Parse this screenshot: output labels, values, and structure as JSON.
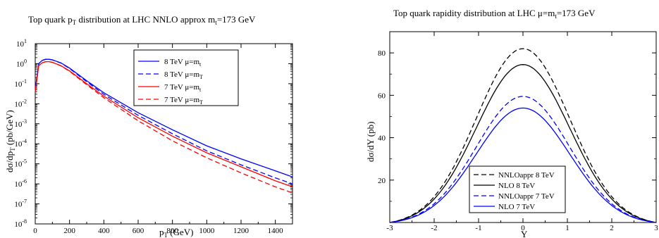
{
  "chart_data": [
    {
      "type": "line",
      "title_main": "Top quark p",
      "title_sub": "T",
      "title_rest": " distribution at  LHC  NNLO approx  m",
      "title_sub2": "t",
      "title_end": "=173 GeV",
      "xlabel_main": "p",
      "xlabel_sub": "T",
      "xlabel_rest": " (GeV)",
      "ylabel_main": "dσ/dp",
      "ylabel_sub": "T",
      "ylabel_rest": " (pb/GeV)",
      "xlim": [
        0,
        1500
      ],
      "ylim_log10": [
        -8,
        1
      ],
      "y_scale": "log",
      "grid": false,
      "legend_position": "top-right",
      "x_ticks": [
        "0",
        "200",
        "400",
        "600",
        "800",
        "1000",
        "1200",
        "1400"
      ],
      "y_ticks": [
        {
          "base": "10",
          "exp": "1"
        },
        {
          "base": "10",
          "exp": "0"
        },
        {
          "base": "10",
          "exp": "-1"
        },
        {
          "base": "10",
          "exp": "-2"
        },
        {
          "base": "10",
          "exp": "-3"
        },
        {
          "base": "10",
          "exp": "-4"
        },
        {
          "base": "10",
          "exp": "-5"
        },
        {
          "base": "10",
          "exp": "-6"
        },
        {
          "base": "10",
          "exp": "-7"
        },
        {
          "base": "10",
          "exp": "-8"
        }
      ],
      "series": [
        {
          "name": "8 TeV μ=m",
          "name_sub": "t",
          "color": "#0000ff",
          "dash": "solid",
          "x": [
            0,
            20,
            40,
            60,
            80,
            100,
            150,
            200,
            300,
            400,
            600,
            800,
            1000,
            1200,
            1400,
            1500
          ],
          "y_log10": [
            -1.3,
            0.0,
            0.16,
            0.22,
            0.22,
            0.19,
            0.04,
            -0.22,
            -0.85,
            -1.45,
            -2.45,
            -3.3,
            -4.1,
            -4.75,
            -5.35,
            -5.65
          ]
        },
        {
          "name": "8 TeV μ=m",
          "name_sub": "T",
          "color": "#0000ff",
          "dash": "dashed",
          "x": [
            0,
            20,
            40,
            60,
            80,
            100,
            150,
            200,
            300,
            400,
            600,
            800,
            1000,
            1200,
            1400,
            1500
          ],
          "y_log10": [
            -1.3,
            0.0,
            0.16,
            0.22,
            0.22,
            0.19,
            0.03,
            -0.24,
            -0.9,
            -1.53,
            -2.58,
            -3.5,
            -4.35,
            -5.05,
            -5.7,
            -6.0
          ]
        },
        {
          "name": "7 TeV μ=m",
          "name_sub": "t",
          "color": "#ff0000",
          "dash": "solid",
          "x": [
            0,
            20,
            40,
            60,
            80,
            100,
            150,
            200,
            300,
            400,
            600,
            800,
            1000,
            1200,
            1400,
            1500
          ],
          "y_log10": [
            -1.4,
            -0.1,
            0.04,
            0.1,
            0.1,
            0.07,
            -0.1,
            -0.36,
            -1.0,
            -1.62,
            -2.7,
            -3.62,
            -4.45,
            -5.15,
            -5.85,
            -6.15
          ]
        },
        {
          "name": "7 TeV μ=m",
          "name_sub": "T",
          "color": "#ff0000",
          "dash": "dashed",
          "x": [
            0,
            20,
            40,
            60,
            80,
            100,
            150,
            200,
            300,
            400,
            600,
            800,
            1000,
            1200,
            1400,
            1500
          ],
          "y_log10": [
            -1.4,
            -0.1,
            0.04,
            0.1,
            0.1,
            0.07,
            -0.11,
            -0.38,
            -1.05,
            -1.7,
            -2.85,
            -3.85,
            -4.7,
            -5.45,
            -6.15,
            -6.45
          ]
        }
      ]
    },
    {
      "type": "line",
      "title_main": "Top quark rapidity distribution at  LHC     μ=m",
      "title_sub": "t",
      "title_end": "=173 GeV",
      "xlabel": "Y",
      "ylabel": "dσ/dY (pb)",
      "xlim": [
        -3,
        3
      ],
      "ylim": [
        0,
        90
      ],
      "grid": false,
      "legend_position": "bottom-left",
      "x_ticks": [
        "-3",
        "-2",
        "-1",
        "0",
        "1",
        "2",
        "3"
      ],
      "y_ticks": [
        "20",
        "40",
        "60",
        "80"
      ],
      "x_tick_values": [
        -3,
        -2,
        -1,
        0,
        1,
        2,
        3
      ],
      "y_tick_values": [
        20,
        40,
        60,
        80
      ],
      "series": [
        {
          "name": "NNLOappr  8 TeV",
          "color": "#000000",
          "dash": "dashed",
          "peak": 82
        },
        {
          "name": "NLO  8 TeV",
          "color": "#000000",
          "dash": "solid",
          "peak": 74.5
        },
        {
          "name": "NNLOappr 7 TeV",
          "color": "#0000ff",
          "dash": "dashed",
          "peak": 59.5
        },
        {
          "name": "NLO 7 TeV",
          "color": "#0000ff",
          "dash": "solid",
          "peak": 54
        }
      ],
      "shape_sigma": 1.05
    }
  ]
}
